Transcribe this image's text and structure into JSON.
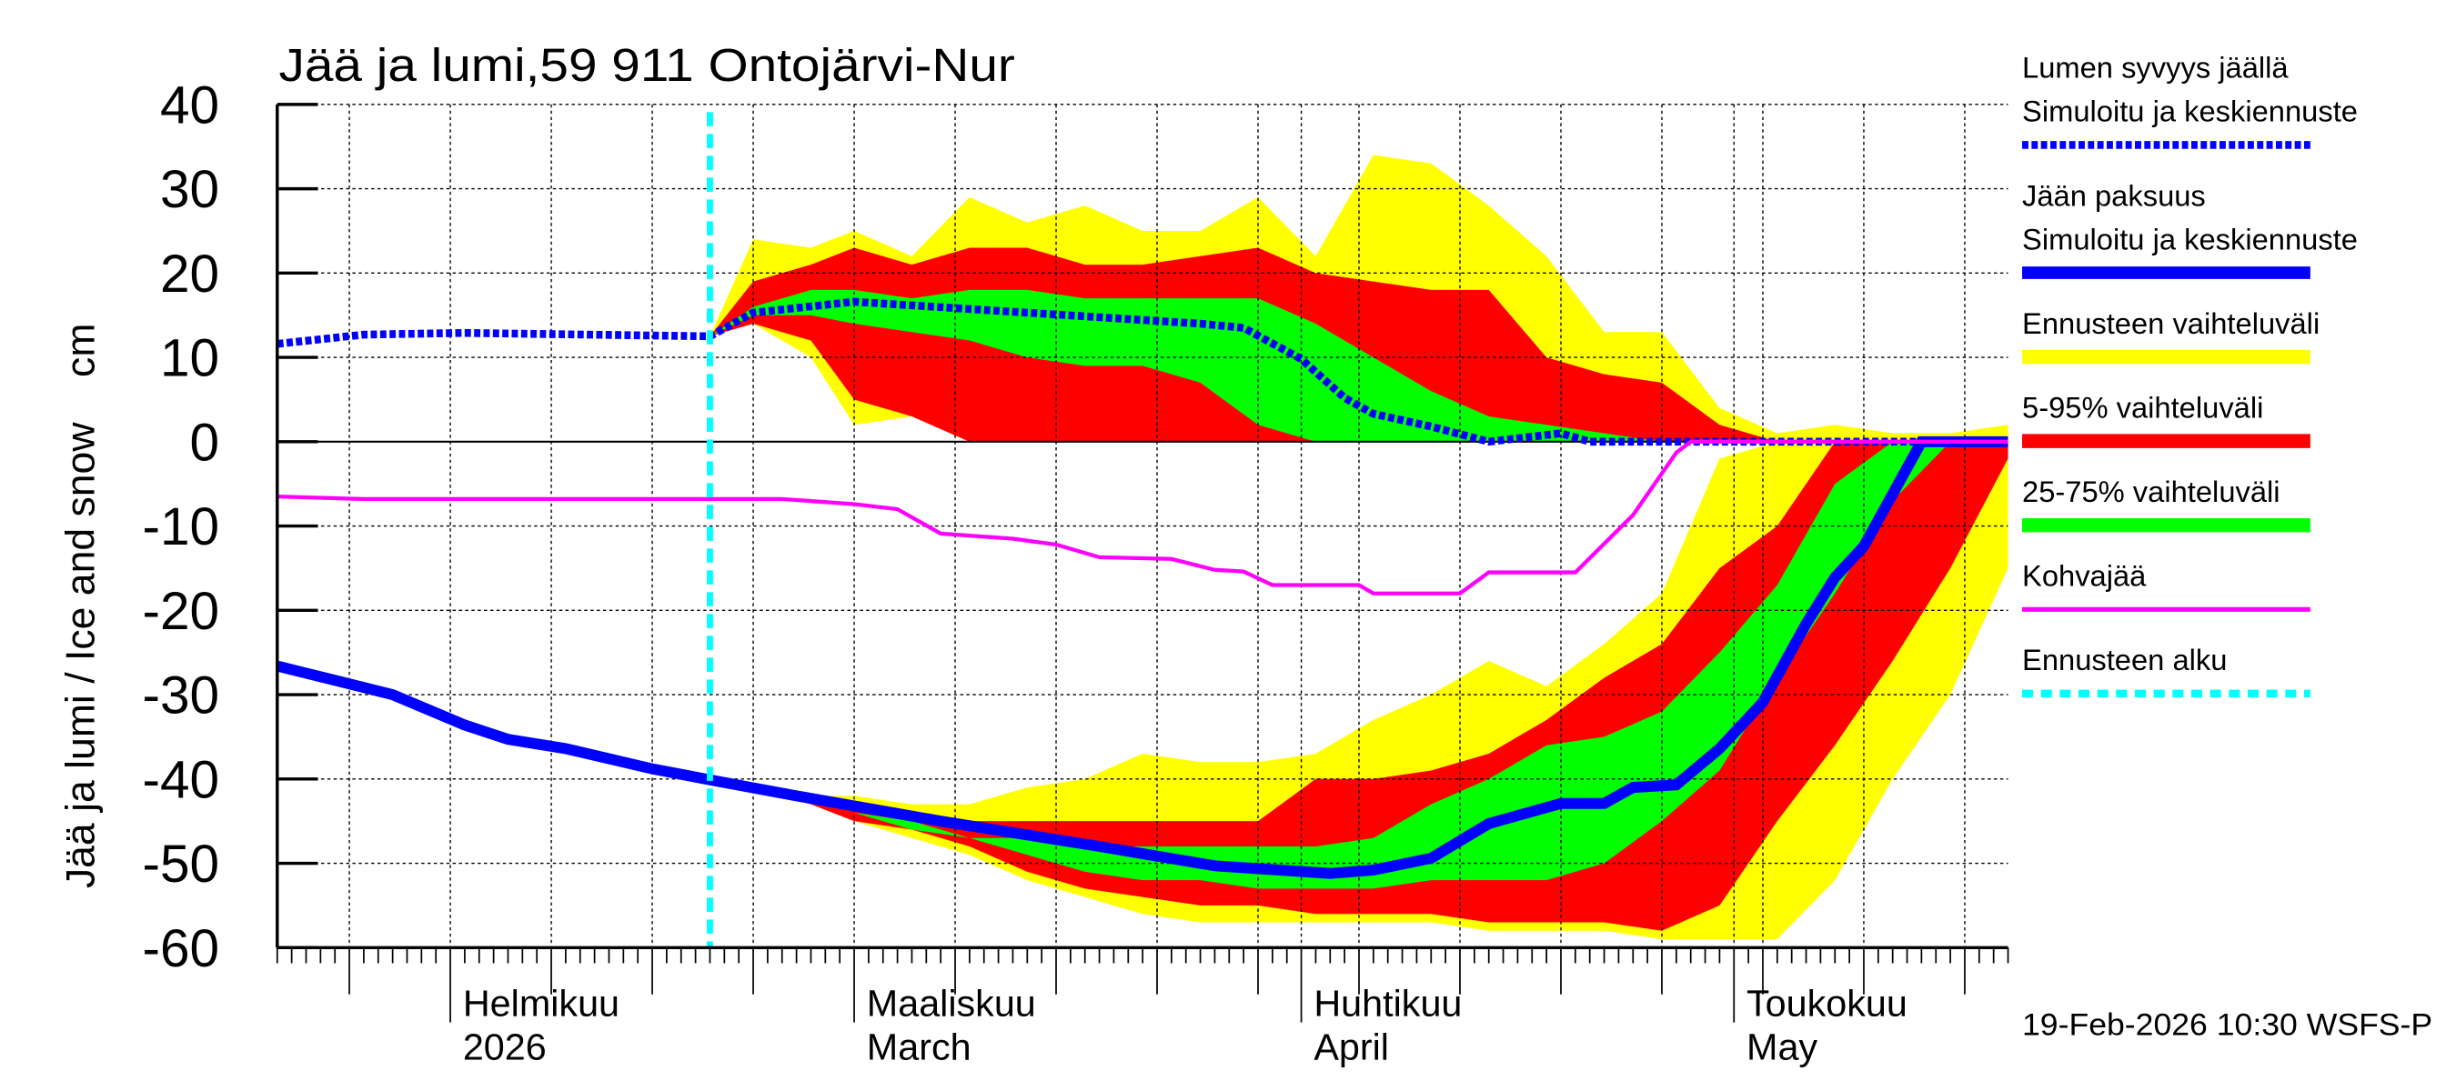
{
  "chart_data": {
    "type": "area",
    "title": "Jää ja lumi,59 911 Ontojärvi-Nur",
    "ylabel": "Jää ja lumi / Ice and snow    cm",
    "ylim": [
      -60,
      40
    ],
    "yticks": [
      40,
      30,
      20,
      10,
      0,
      -10,
      -20,
      -30,
      -40,
      -50,
      -60
    ],
    "xlim": [
      "2026-01-20",
      "2026-05-20"
    ],
    "grid": true,
    "legend_position": "right",
    "month_labels": [
      {
        "date": "2026-02-01",
        "fi": "Helmikuu",
        "en": "2026"
      },
      {
        "date": "2026-03-01",
        "fi": "Maaliskuu",
        "en": "March"
      },
      {
        "date": "2026-04-01",
        "fi": "Huhtikuu",
        "en": "April"
      },
      {
        "date": "2026-05-01",
        "fi": "Toukokuu",
        "en": "May"
      }
    ],
    "forecast_start": "2026-02-19",
    "timestamp": "19-Feb-2026 10:30 WSFS-P",
    "legend": [
      {
        "line1": "Lumen syvyys jäällä",
        "line2": "Simuloitu ja keskiennuste",
        "color": "#0000ff",
        "style": "dotted"
      },
      {
        "line1": "Jään paksuus",
        "line2": "Simuloitu ja keskiennuste",
        "color": "#0000ff",
        "style": "thick"
      },
      {
        "line1": "Ennusteen vaihteluväli",
        "color": "#ffff00",
        "style": "band"
      },
      {
        "line1": "5-95% vaihteluväli",
        "color": "#ff0000",
        "style": "band"
      },
      {
        "line1": "25-75% vaihteluväli",
        "color": "#00ff00",
        "style": "band"
      },
      {
        "line1": "Kohvajää",
        "color": "#ff00ff",
        "style": "line"
      },
      {
        "line1": "Ennusteen alku",
        "color": "#00ffff",
        "style": "dashed"
      }
    ],
    "band_dates": [
      "2026-02-19",
      "2026-02-22",
      "2026-02-26",
      "2026-03-01",
      "2026-03-05",
      "2026-03-09",
      "2026-03-13",
      "2026-03-17",
      "2026-03-21",
      "2026-03-25",
      "2026-03-29",
      "2026-04-02",
      "2026-04-06",
      "2026-04-10",
      "2026-04-14",
      "2026-04-18",
      "2026-04-22",
      "2026-04-26",
      "2026-04-30",
      "2026-05-04",
      "2026-05-08",
      "2026-05-12",
      "2026-05-16",
      "2026-05-20"
    ],
    "snow_bands": {
      "range_max": [
        12.5,
        24,
        23,
        25,
        22,
        29,
        26,
        28,
        25,
        25,
        29,
        22,
        34,
        33,
        28,
        22,
        13,
        13,
        4,
        1,
        2,
        1,
        1,
        2
      ],
      "range_min": [
        12.5,
        14,
        10,
        2,
        3,
        0,
        0,
        0,
        0,
        0,
        0,
        0,
        0,
        0,
        0,
        0,
        0,
        0,
        0,
        0,
        0,
        0,
        0,
        0
      ],
      "p95": [
        12.5,
        19,
        21,
        23,
        21,
        23,
        23,
        21,
        21,
        22,
        23,
        20,
        19,
        18,
        18,
        10,
        8,
        7,
        2,
        0,
        0,
        0,
        0,
        0
      ],
      "p5": [
        12.5,
        14,
        12,
        5,
        3,
        0,
        0,
        0,
        0,
        0,
        0,
        0,
        0,
        0,
        0,
        0,
        0,
        0,
        0,
        0,
        0,
        0,
        0,
        0
      ],
      "p75": [
        12.5,
        16,
        18,
        18,
        17,
        18,
        18,
        17,
        17,
        17,
        17,
        14,
        10,
        6,
        3,
        2,
        1,
        0,
        0,
        0,
        0,
        0,
        0,
        0
      ],
      "p25": [
        12.5,
        15,
        15,
        14,
        13,
        12,
        10,
        9,
        9,
        7,
        2,
        0,
        0,
        0,
        0,
        0,
        0,
        0,
        0,
        0,
        0,
        0,
        0,
        0
      ]
    },
    "ice_bands": {
      "range_max": [
        -40,
        -41,
        -42,
        -42,
        -43,
        -43,
        -41,
        -40,
        -37,
        -38,
        -38,
        -37,
        -33,
        -30,
        -26,
        -29,
        -24,
        -18,
        -2,
        0,
        0,
        0,
        0,
        0
      ],
      "p95": [
        -40,
        -41,
        -42,
        -43,
        -44,
        -45,
        -45,
        -45,
        -45,
        -45,
        -45,
        -40,
        -40,
        -39,
        -37,
        -33,
        -28,
        -24,
        -15,
        -10,
        0,
        0,
        0,
        0
      ],
      "p75": [
        -40,
        -41,
        -42,
        -44,
        -45,
        -47,
        -47,
        -48,
        -48,
        -48,
        -48,
        -48,
        -47,
        -43,
        -40,
        -36,
        -35,
        -32,
        -25,
        -17,
        -5,
        0,
        0,
        0
      ],
      "p25": [
        -40,
        -41,
        -42,
        -44,
        -46,
        -47,
        -49,
        -51,
        -52,
        -52,
        -53,
        -53,
        -53,
        -52,
        -52,
        -52,
        -50,
        -45,
        -39,
        -28,
        -18,
        -7,
        0,
        0
      ],
      "p5": [
        -40,
        -41,
        -43,
        -45,
        -46,
        -48,
        -51,
        -53,
        -54,
        -55,
        -55,
        -56,
        -56,
        -56,
        -57,
        -57,
        -57,
        -58,
        -55,
        -45,
        -36,
        -26,
        -15,
        -2
      ],
      "range_min": [
        -40,
        -41,
        -43,
        -45,
        -47,
        -49,
        -52,
        -54,
        -56,
        -57,
        -57,
        -57,
        -57,
        -57,
        -58,
        -58,
        -58,
        -59,
        -59,
        -59,
        -52,
        -40,
        -30,
        -15
      ]
    },
    "series": [
      {
        "name": "Lumen syvyys jäällä",
        "points": [
          [
            "2026-01-20",
            11.6
          ],
          [
            "2026-01-26",
            12.7
          ],
          [
            "2026-02-02",
            12.9
          ],
          [
            "2026-02-19",
            12.5
          ],
          [
            "2026-02-22",
            15.3
          ],
          [
            "2026-03-01",
            16.6
          ],
          [
            "2026-03-13",
            15.3
          ],
          [
            "2026-03-25",
            14
          ],
          [
            "2026-03-28",
            13.5
          ],
          [
            "2026-04-01",
            9.8
          ],
          [
            "2026-04-04",
            5.2
          ],
          [
            "2026-04-06",
            3.3
          ],
          [
            "2026-04-10",
            1.8
          ],
          [
            "2026-04-14",
            0
          ],
          [
            "2026-04-19",
            1
          ],
          [
            "2026-04-21",
            0
          ],
          [
            "2026-05-20",
            0
          ]
        ]
      },
      {
        "name": "Jään paksuus",
        "points": [
          [
            "2026-01-20",
            -26.6
          ],
          [
            "2026-01-28",
            -30
          ],
          [
            "2026-02-02",
            -33.6
          ],
          [
            "2026-02-05",
            -35.3
          ],
          [
            "2026-02-09",
            -36.4
          ],
          [
            "2026-02-15",
            -38.8
          ],
          [
            "2026-02-19",
            -40.1
          ],
          [
            "2026-02-25",
            -42
          ],
          [
            "2026-03-07",
            -45
          ],
          [
            "2026-03-18",
            -48
          ],
          [
            "2026-03-26",
            -50.3
          ],
          [
            "2026-04-03",
            -51.2
          ],
          [
            "2026-04-06",
            -50.8
          ],
          [
            "2026-04-10",
            -49.4
          ],
          [
            "2026-04-14",
            -45.3
          ],
          [
            "2026-04-19",
            -42.9
          ],
          [
            "2026-04-22",
            -42.9
          ],
          [
            "2026-04-24",
            -41
          ],
          [
            "2026-04-27",
            -40.7
          ],
          [
            "2026-04-30",
            -36.4
          ],
          [
            "2026-05-03",
            -30.9
          ],
          [
            "2026-05-06",
            -21.6
          ],
          [
            "2026-05-08",
            -16.1
          ],
          [
            "2026-05-10",
            -12.4
          ],
          [
            "2026-05-14",
            0
          ],
          [
            "2026-05-20",
            0
          ]
        ]
      },
      {
        "name": "Kohvajää",
        "points": [
          [
            "2026-01-20",
            -6.5
          ],
          [
            "2026-01-26",
            -6.8
          ],
          [
            "2026-02-24",
            -6.8
          ],
          [
            "2026-03-01",
            -7.4
          ],
          [
            "2026-03-04",
            -8
          ],
          [
            "2026-03-07",
            -10.9
          ],
          [
            "2026-03-12",
            -11.5
          ],
          [
            "2026-03-15",
            -12.2
          ],
          [
            "2026-03-18",
            -13.7
          ],
          [
            "2026-03-23",
            -13.9
          ],
          [
            "2026-03-26",
            -15.2
          ],
          [
            "2026-03-28",
            -15.4
          ],
          [
            "2026-03-30",
            -17
          ],
          [
            "2026-04-05",
            -17
          ],
          [
            "2026-04-06",
            -18
          ],
          [
            "2026-04-12",
            -18
          ],
          [
            "2026-04-14",
            -15.5
          ],
          [
            "2026-04-20",
            -15.5
          ],
          [
            "2026-04-24",
            -8.7
          ],
          [
            "2026-04-27",
            -1.3
          ],
          [
            "2026-04-28",
            0
          ],
          [
            "2026-05-20",
            0
          ]
        ]
      }
    ]
  }
}
